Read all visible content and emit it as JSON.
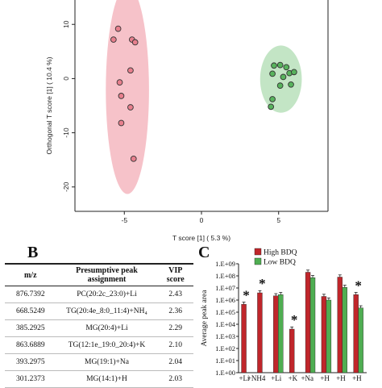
{
  "panel_b_letter": "B",
  "panel_c_letter": "C",
  "chart_data": [
    {
      "type": "scatter",
      "xlabel": "T score [1] ( 5.3 %)",
      "ylabel": "Orthogonal T score [1] ( 10.4 %)",
      "xlim": [
        -8.2,
        8.2
      ],
      "ylim": [
        -24.5,
        14.5
      ],
      "x_ticks": [
        -5,
        0,
        5
      ],
      "y_ticks": [
        10,
        0,
        -10,
        -20
      ],
      "series": [
        {
          "color": "#e77f8d",
          "ellipse_color": "#f4b7c0",
          "ellipse": {
            "cx": -4.8,
            "cy": -2.1,
            "rx": 1.4,
            "ry": 19.2
          },
          "x": [
            -5.4,
            -5.7,
            -4.5,
            -4.3,
            -4.6,
            -5.3,
            -5.2,
            -4.6,
            -5.2,
            -4.4
          ],
          "y": [
            9.2,
            7.2,
            7.2,
            6.7,
            1.5,
            -0.7,
            -3.2,
            -5.3,
            -8.2,
            -14.8
          ]
        },
        {
          "color": "#58b35d",
          "ellipse_color": "#b9e0bb",
          "ellipse": {
            "cx": 5.15,
            "cy": -0.1,
            "rx": 1.35,
            "ry": 6.2
          },
          "x": [
            4.7,
            5.1,
            5.5,
            5.7,
            6.0,
            4.6,
            5.3,
            5.1,
            5.8,
            4.6,
            4.5
          ],
          "y": [
            2.4,
            2.5,
            2.1,
            1.0,
            1.2,
            0.9,
            0.3,
            -1.3,
            -1.1,
            -3.8,
            -5.2
          ]
        }
      ]
    },
    {
      "type": "table",
      "columns": [
        "m/z",
        "Presumptive peak assignment",
        "VIP score"
      ],
      "rows": [
        [
          "876.7392",
          "PC(20:2c_23:0)+Li",
          "2.43"
        ],
        [
          "668.5249",
          "TG(20:4e_8:0_11:4)+NH₄",
          "2.36"
        ],
        [
          "385.2925",
          "MG(20:4)+Li",
          "2.29"
        ],
        [
          "863.6889",
          "TG(12:1e_19:0_20:4)+K",
          "2.10"
        ],
        [
          "393.2975",
          "MG(19:1)+Na",
          "2.04"
        ],
        [
          "301.2373",
          "MG(14:1)+H",
          "2.03"
        ]
      ]
    },
    {
      "type": "bar",
      "ylabel": "Average peak area",
      "y_scale": "log",
      "ylim_exp": [
        0,
        9
      ],
      "y_ticks": [
        "1.E+00",
        "1.E+01",
        "1.E+02",
        "1.E+03",
        "1.E+04",
        "1.E+05",
        "1.E+06",
        "1.E+07",
        "1.E+08",
        "1.E+09"
      ],
      "categories": [
        "+Li",
        "+NH4",
        "+Li",
        "+K",
        "+Na",
        "+H",
        "+H",
        "+H"
      ],
      "significant": [
        true,
        true,
        false,
        true,
        false,
        false,
        false,
        true
      ],
      "legend_position": "top",
      "series": [
        {
          "name": "High BDQ",
          "color": "#c0262b",
          "log_values": [
            5.65,
            6.6,
            6.35,
            3.6,
            8.3,
            6.3,
            7.9,
            6.45
          ]
        },
        {
          "name": "Low BDQ",
          "color": "#4fae52",
          "log_values": [
            0,
            0,
            6.45,
            0,
            7.85,
            6.0,
            7.05,
            5.35
          ]
        }
      ]
    }
  ]
}
